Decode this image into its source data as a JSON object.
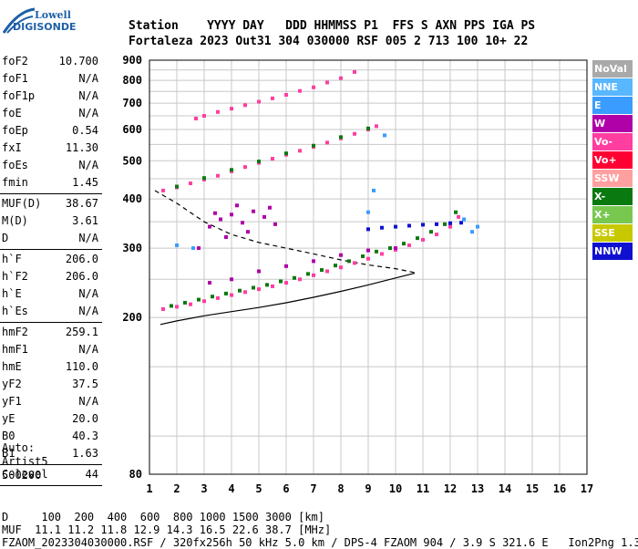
{
  "logo": {
    "line1": "Lowell",
    "line2": "DIGISONDE"
  },
  "header": {
    "row1": "Station    YYYY DAY   DDD HHMMSS P1  FFS S AXN PPS IGA PS",
    "row2": "Fortaleza 2023 Out31 304 030000 RSF 005 2 713 100 10+ 22"
  },
  "params": {
    "group1": [
      {
        "k": "foF2",
        "v": "10.700"
      },
      {
        "k": "foF1",
        "v": "N/A"
      },
      {
        "k": "foF1p",
        "v": "N/A"
      },
      {
        "k": "foE",
        "v": "N/A"
      },
      {
        "k": "foEp",
        "v": "0.54"
      },
      {
        "k": "fxI",
        "v": "11.30"
      },
      {
        "k": "foEs",
        "v": "N/A"
      },
      {
        "k": "fmin",
        "v": "1.45"
      }
    ],
    "group2": [
      {
        "k": "MUF(D)",
        "v": "38.67"
      },
      {
        "k": "M(D)",
        "v": "3.61"
      },
      {
        "k": "D",
        "v": "N/A"
      }
    ],
    "group3": [
      {
        "k": "h`F",
        "v": "206.0"
      },
      {
        "k": "h`F2",
        "v": "206.0"
      },
      {
        "k": "h`E",
        "v": "N/A"
      },
      {
        "k": "h`Es",
        "v": "N/A"
      }
    ],
    "group4": [
      {
        "k": "hmF2",
        "v": "259.1"
      },
      {
        "k": "hmF1",
        "v": "N/A"
      },
      {
        "k": "hmE",
        "v": "110.0"
      },
      {
        "k": "yF2",
        "v": "37.5"
      },
      {
        "k": "yF1",
        "v": "N/A"
      },
      {
        "k": "yE",
        "v": "20.0"
      },
      {
        "k": "B0",
        "v": "40.3"
      },
      {
        "k": "B1",
        "v": "1.63"
      }
    ],
    "group5": [
      {
        "k": "C-level",
        "v": "44"
      }
    ]
  },
  "auto": {
    "line1": "Auto:",
    "line2": "Artist5",
    "line3": "500200"
  },
  "bottom": {
    "line1": "D     100  200  400  600  800 1000 1500 3000 [km]",
    "line2": "MUF  11.1 11.2 11.8 12.9 14.3 16.5 22.6 38.7 [MHz]",
    "line3": "FZAOM_2023304030000.RSF / 320fx256h 50 kHz 5.0 km / DPS-4 FZAOM 904 / 3.9 S 321.6 E   Ion2Png 1.3.20"
  },
  "legend": [
    {
      "label": "NoVal",
      "color": "#a9a9a9"
    },
    {
      "label": "NNE",
      "color": "#58b7ff"
    },
    {
      "label": "E",
      "color": "#3a9cff"
    },
    {
      "label": "W",
      "color": "#b000a8"
    },
    {
      "label": "Vo-",
      "color": "#ff3ea0"
    },
    {
      "label": "Vo+",
      "color": "#ff0033"
    },
    {
      "label": "SSW",
      "color": "#ffa0a0"
    },
    {
      "label": "X-",
      "color": "#0a7a10"
    },
    {
      "label": "X+",
      "color": "#78c850"
    },
    {
      "label": "SSE",
      "color": "#c8c800"
    },
    {
      "label": "NNW",
      "color": "#1010d0"
    }
  ],
  "chart_data": {
    "type": "scatter",
    "xlabel": "",
    "ylabel": "",
    "xlim": [
      1,
      17
    ],
    "ylim": [
      80,
      900
    ],
    "log_y": true,
    "x_ticks": [
      1,
      2,
      3,
      4,
      5,
      6,
      7,
      8,
      9,
      10,
      11,
      12,
      13,
      14,
      15,
      16,
      17
    ],
    "y_ticks": [
      80,
      200,
      300,
      400,
      500,
      600,
      700,
      800,
      900
    ],
    "grid": true,
    "point_groups": [
      {
        "name": "O-trace main",
        "color": "#ff3ea0",
        "points": [
          [
            1.5,
            210
          ],
          [
            2,
            213
          ],
          [
            2.5,
            216
          ],
          [
            3,
            220
          ],
          [
            3.5,
            224
          ],
          [
            4,
            228
          ],
          [
            4.5,
            232
          ],
          [
            5,
            236
          ],
          [
            5.5,
            240
          ],
          [
            6,
            245
          ],
          [
            6.5,
            250
          ],
          [
            7,
            256
          ],
          [
            7.5,
            262
          ],
          [
            8,
            268
          ],
          [
            8.5,
            275
          ],
          [
            9,
            282
          ],
          [
            9.5,
            290
          ],
          [
            10,
            297
          ],
          [
            10.5,
            305
          ],
          [
            11,
            315
          ],
          [
            11.5,
            325
          ],
          [
            12,
            340
          ],
          [
            12.3,
            360
          ]
        ]
      },
      {
        "name": "X-trace main",
        "color": "#0a7a10",
        "points": [
          [
            1.8,
            214
          ],
          [
            2.3,
            218
          ],
          [
            2.8,
            222
          ],
          [
            3.3,
            226
          ],
          [
            3.8,
            230
          ],
          [
            4.3,
            234
          ],
          [
            4.8,
            238
          ],
          [
            5.3,
            242
          ],
          [
            5.8,
            247
          ],
          [
            6.3,
            252
          ],
          [
            6.8,
            258
          ],
          [
            7.3,
            264
          ],
          [
            7.8,
            271
          ],
          [
            8.3,
            278
          ],
          [
            8.8,
            286
          ],
          [
            9.3,
            294
          ],
          [
            9.8,
            300
          ],
          [
            10.3,
            308
          ],
          [
            10.8,
            318
          ],
          [
            11.3,
            330
          ],
          [
            11.8,
            345
          ],
          [
            12.2,
            370
          ]
        ]
      },
      {
        "name": "O-trace second hop",
        "color": "#ff3ea0",
        "points": [
          [
            1.5,
            420
          ],
          [
            2,
            428
          ],
          [
            2.5,
            438
          ],
          [
            3,
            448
          ],
          [
            3.5,
            458
          ],
          [
            4,
            470
          ],
          [
            4.5,
            482
          ],
          [
            5,
            494
          ],
          [
            5.5,
            506
          ],
          [
            6,
            518
          ],
          [
            6.5,
            530
          ],
          [
            7,
            542
          ],
          [
            7.5,
            556
          ],
          [
            8,
            570
          ],
          [
            8.5,
            585
          ],
          [
            9,
            600
          ],
          [
            9.3,
            612
          ]
        ]
      },
      {
        "name": "X-trace second hop",
        "color": "#0a7a10",
        "points": [
          [
            2,
            430
          ],
          [
            3,
            452
          ],
          [
            4,
            474
          ],
          [
            5,
            498
          ],
          [
            6,
            522
          ],
          [
            7,
            546
          ],
          [
            8,
            574
          ],
          [
            9,
            604
          ]
        ]
      },
      {
        "name": "O-trace third hop",
        "color": "#ff3ea0",
        "points": [
          [
            2.7,
            640
          ],
          [
            3,
            650
          ],
          [
            3.5,
            665
          ],
          [
            4,
            678
          ],
          [
            4.5,
            692
          ],
          [
            5,
            706
          ],
          [
            5.5,
            720
          ],
          [
            6,
            735
          ],
          [
            6.5,
            752
          ],
          [
            7,
            768
          ],
          [
            7.5,
            790
          ],
          [
            8,
            810
          ],
          [
            8.5,
            840
          ]
        ]
      },
      {
        "name": "W echoes",
        "color": "#b000a8",
        "points": [
          [
            3.2,
            340
          ],
          [
            3.6,
            355
          ],
          [
            4,
            365
          ],
          [
            4.4,
            348
          ],
          [
            4.8,
            372
          ],
          [
            5.2,
            360
          ],
          [
            5.6,
            345
          ],
          [
            3.8,
            320
          ],
          [
            4.6,
            330
          ],
          [
            5.4,
            380
          ],
          [
            3.4,
            368
          ],
          [
            4.2,
            385
          ],
          [
            2.8,
            300
          ],
          [
            3.2,
            245
          ],
          [
            4,
            250
          ],
          [
            5,
            262
          ],
          [
            6,
            270
          ],
          [
            7,
            278
          ],
          [
            8,
            288
          ],
          [
            9,
            296
          ],
          [
            10,
            300
          ]
        ]
      },
      {
        "name": "NNW echoes",
        "color": "#1010d0",
        "points": [
          [
            9,
            335
          ],
          [
            9.5,
            338
          ],
          [
            10,
            340
          ],
          [
            10.5,
            342
          ],
          [
            11,
            344
          ],
          [
            11.5,
            345
          ],
          [
            12,
            347
          ],
          [
            12.4,
            348
          ]
        ]
      },
      {
        "name": "E echoes",
        "color": "#3a9cff",
        "points": [
          [
            9,
            370
          ],
          [
            9.2,
            420
          ],
          [
            9.6,
            580
          ],
          [
            12.5,
            355
          ],
          [
            13,
            340
          ],
          [
            12.8,
            330
          ],
          [
            2,
            305
          ],
          [
            2.6,
            300
          ]
        ]
      }
    ],
    "profile_solid": [
      [
        1.4,
        192
      ],
      [
        2,
        196
      ],
      [
        3,
        202
      ],
      [
        4,
        207
      ],
      [
        5,
        212
      ],
      [
        6,
        218
      ],
      [
        7,
        225
      ],
      [
        8,
        233
      ],
      [
        9,
        242
      ],
      [
        10,
        252
      ],
      [
        10.7,
        259
      ]
    ],
    "profile_dashed": [
      [
        1.2,
        420
      ],
      [
        2,
        390
      ],
      [
        3,
        350
      ],
      [
        4,
        325
      ],
      [
        5,
        310
      ],
      [
        6,
        300
      ],
      [
        7,
        290
      ],
      [
        8,
        280
      ],
      [
        9,
        272
      ],
      [
        10,
        266
      ],
      [
        10.7,
        260
      ]
    ]
  }
}
